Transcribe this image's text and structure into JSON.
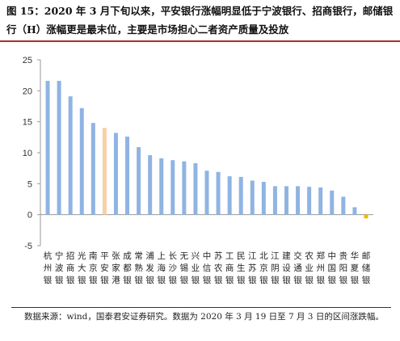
{
  "caption": "图 15：2020 年 3 月下旬以来，平安银行涨幅明显低于宁波银行、招商银行，邮储银行（H）涨幅更是最末位，主要是市场担心二者资产质量及投放",
  "note": "数据来源：wind，国泰君安证券研究。数据为 2020 年 3 月 19 日至 7 月 3 日的区间涨跌幅。",
  "colors": {
    "default": "#8fb4e3",
    "pingan": "#f8cfa8",
    "psbc": "#f5b800"
  },
  "chart_data": {
    "type": "bar",
    "categories": [
      "杭州银",
      "宁波银",
      "招商银",
      "光大银",
      "南京银",
      "平安银",
      "张家港",
      "成都银",
      "常熟银",
      "浦发银",
      "上海银",
      "长沙银",
      "无锡银",
      "兴业银",
      "中信银",
      "苏农银",
      "工商银",
      "民生银",
      "江苏银",
      "北京银",
      "江阴银",
      "建设银",
      "交通银",
      "农业银",
      "郑州银",
      "中国银",
      "贵阳银",
      "华夏银",
      "邮储银"
    ],
    "values": [
      21.6,
      21.6,
      19.1,
      17.2,
      14.8,
      14.0,
      13.2,
      12.6,
      10.9,
      9.6,
      9.1,
      8.8,
      8.6,
      8.3,
      7.1,
      6.9,
      6.2,
      6.1,
      5.5,
      5.3,
      4.6,
      4.6,
      4.6,
      4.5,
      4.4,
      3.9,
      2.9,
      1.2,
      -0.6
    ],
    "highlight": {
      "平安银": "pingan",
      "邮储银": "psbc"
    },
    "ylim": [
      -5,
      25
    ],
    "yticks": [
      -5,
      0,
      5,
      10,
      15,
      20,
      25
    ],
    "grid": false
  }
}
